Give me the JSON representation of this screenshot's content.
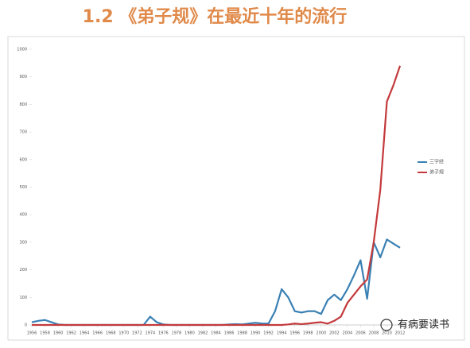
{
  "chart_data": {
    "type": "line",
    "title": "1.2 《弟子规》在最近十年的流行",
    "x": [
      1956,
      1957,
      1958,
      1959,
      1960,
      1961,
      1962,
      1963,
      1964,
      1965,
      1966,
      1967,
      1968,
      1969,
      1970,
      1971,
      1972,
      1973,
      1974,
      1975,
      1976,
      1977,
      1978,
      1979,
      1980,
      1981,
      1982,
      1983,
      1984,
      1985,
      1986,
      1987,
      1988,
      1989,
      1990,
      1991,
      1992,
      1993,
      1994,
      1995,
      1996,
      1997,
      1998,
      1999,
      2000,
      2001,
      2002,
      2003,
      2004,
      2005,
      2006,
      2007,
      2008,
      2009,
      2010,
      2011,
      2012
    ],
    "series": [
      {
        "name": "三字经",
        "color": "#3a80b4",
        "values": [
          10,
          15,
          18,
          10,
          2,
          0,
          0,
          0,
          0,
          0,
          0,
          0,
          0,
          0,
          0,
          0,
          0,
          0,
          30,
          10,
          2,
          0,
          0,
          0,
          0,
          0,
          0,
          0,
          0,
          0,
          2,
          3,
          2,
          5,
          8,
          5,
          5,
          50,
          130,
          100,
          50,
          45,
          50,
          50,
          40,
          90,
          110,
          90,
          130,
          180,
          235,
          95,
          300,
          245,
          310,
          295,
          280
        ]
      },
      {
        "name": "弟子规",
        "color": "#c3393b",
        "values": [
          0,
          0,
          0,
          0,
          0,
          0,
          0,
          0,
          0,
          0,
          0,
          0,
          0,
          0,
          0,
          0,
          0,
          0,
          0,
          0,
          0,
          0,
          0,
          0,
          0,
          0,
          0,
          0,
          0,
          0,
          0,
          0,
          0,
          0,
          0,
          0,
          0,
          0,
          0,
          2,
          5,
          3,
          5,
          8,
          10,
          5,
          15,
          30,
          80,
          110,
          140,
          165,
          300,
          490,
          810,
          870,
          940
        ]
      }
    ],
    "xlim": [
      1956,
      2012
    ],
    "xticks": [
      1956,
      1958,
      1960,
      1962,
      1964,
      1966,
      1968,
      1970,
      1972,
      1974,
      1976,
      1978,
      1980,
      1982,
      1984,
      1986,
      1988,
      1990,
      1992,
      1994,
      1996,
      1998,
      2000,
      2002,
      2004,
      2006,
      2008,
      2010,
      2012
    ],
    "ylim": [
      0,
      1000
    ],
    "yticks": [
      0,
      100,
      200,
      300,
      400,
      500,
      600,
      700,
      800,
      900,
      1000
    ],
    "legend": "right",
    "watermark": "有病要读书"
  }
}
